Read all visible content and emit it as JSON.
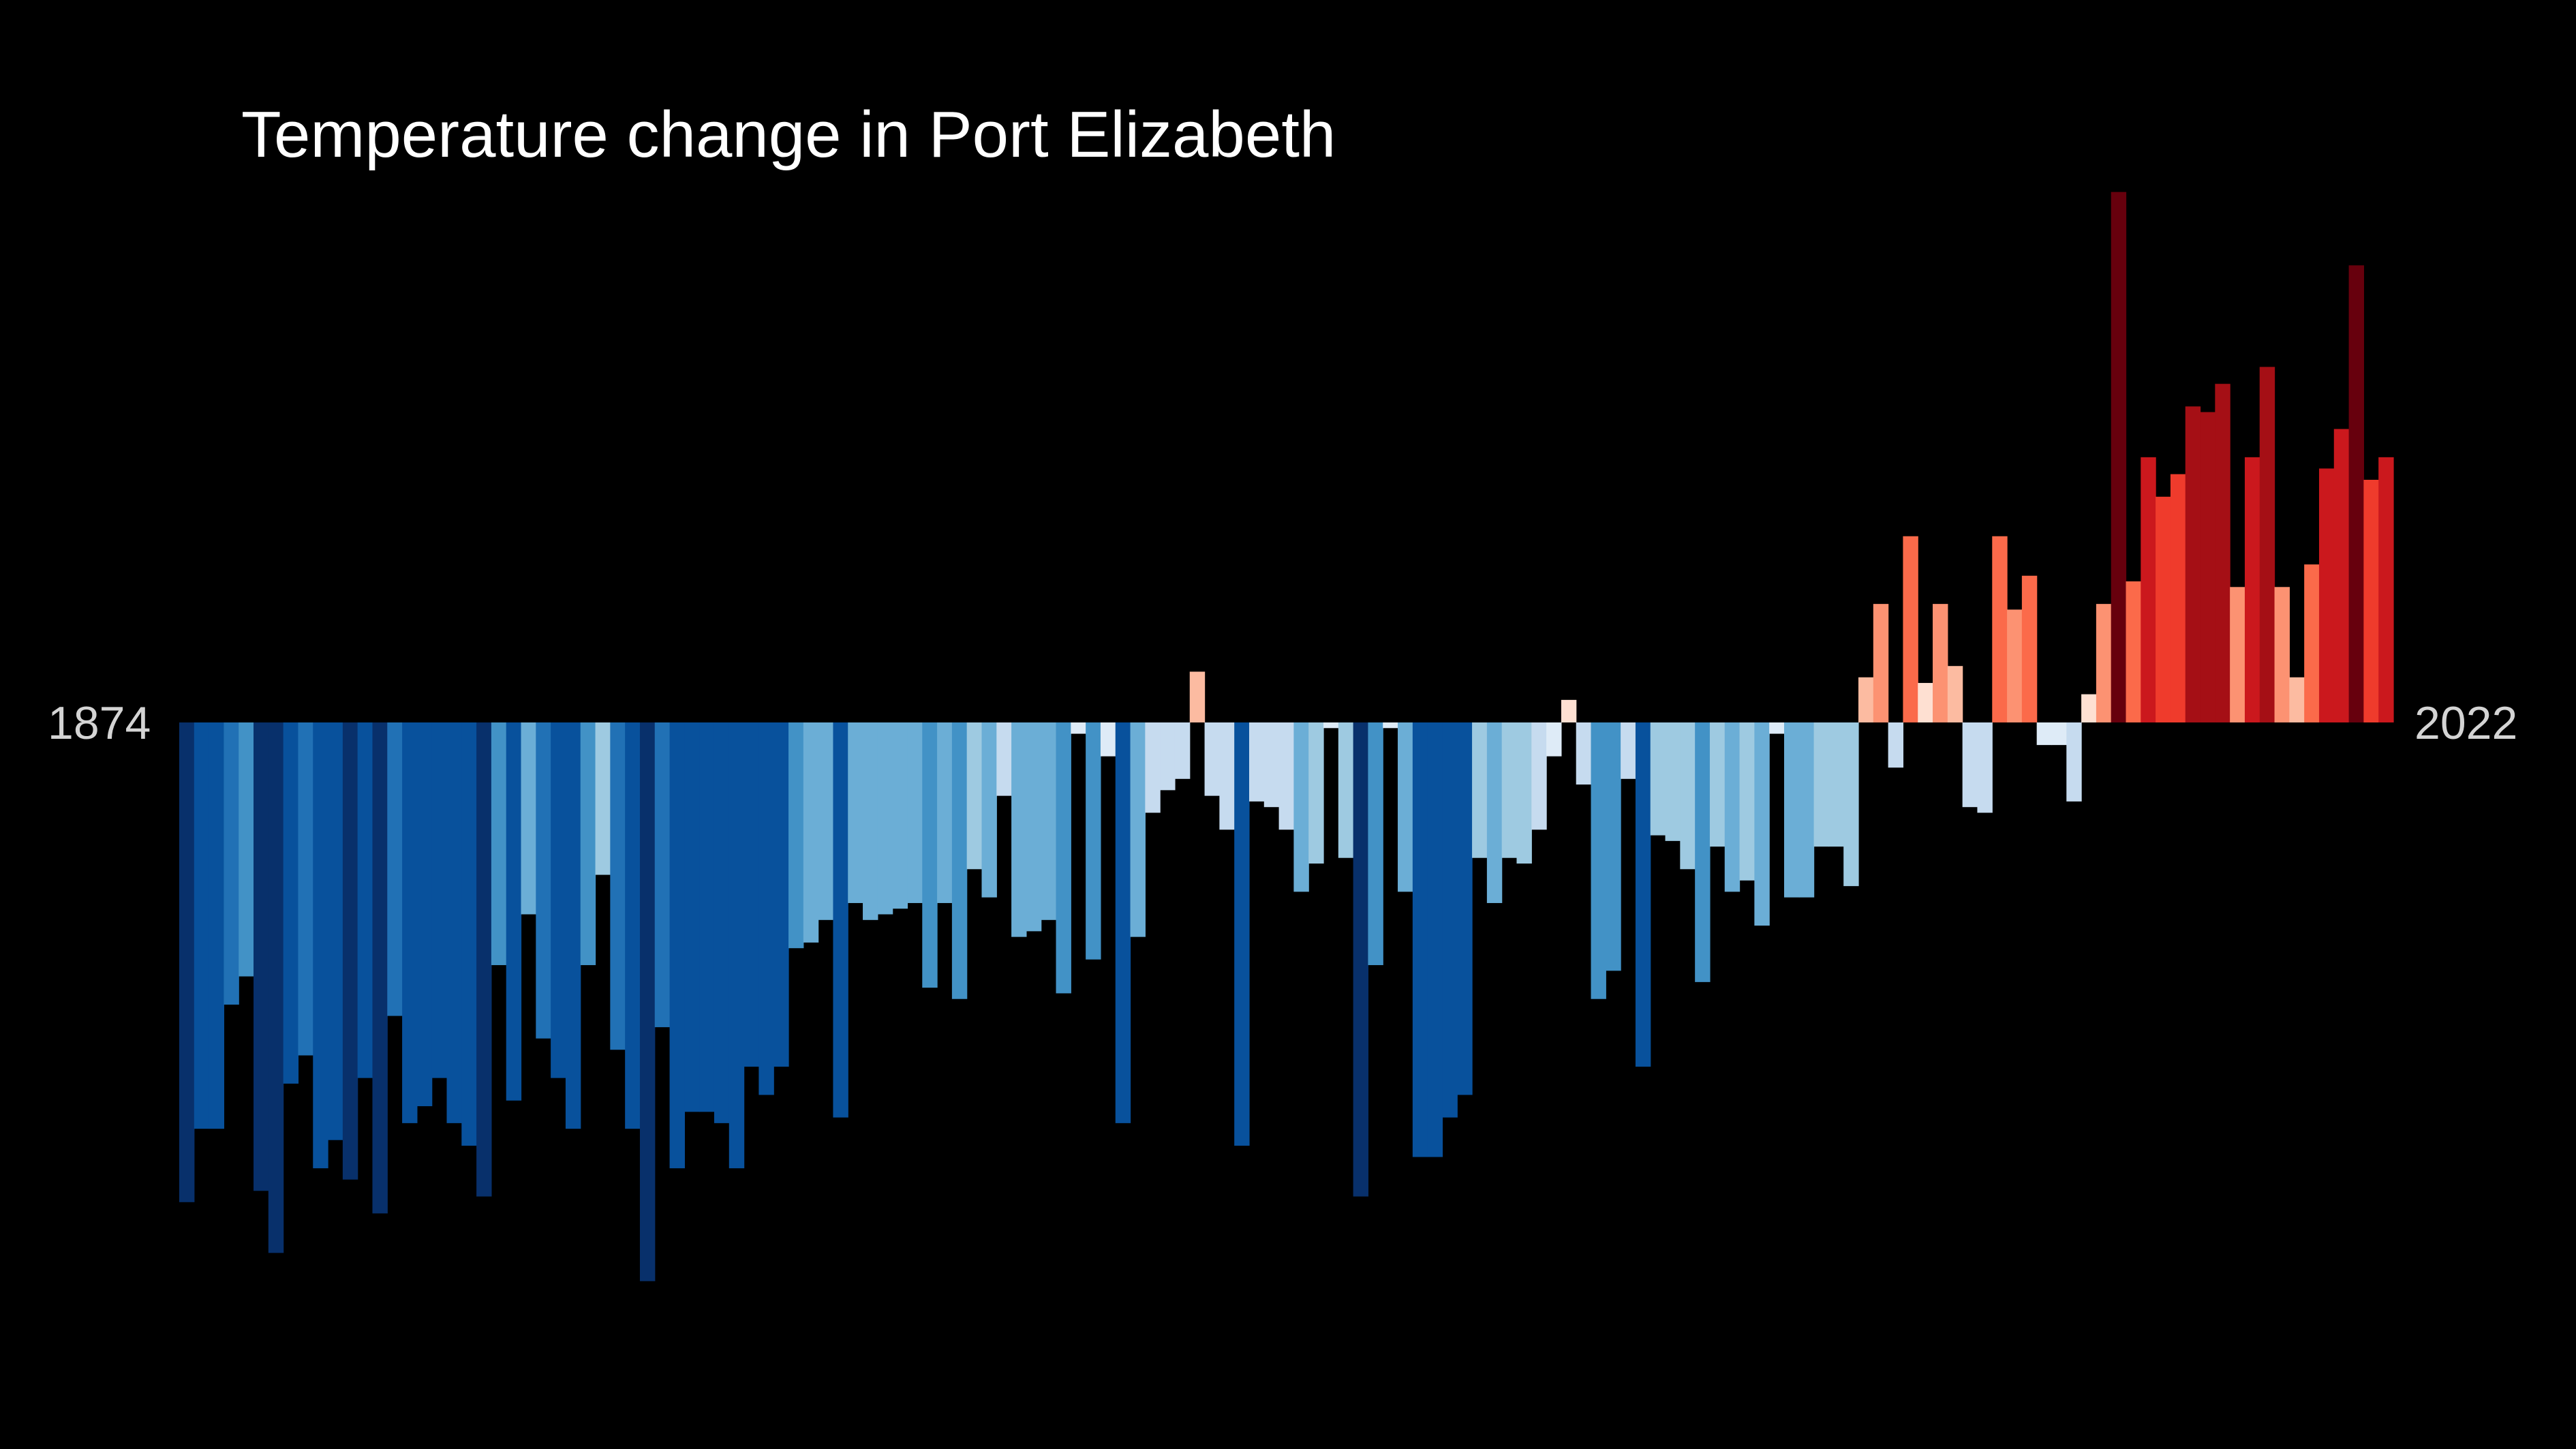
{
  "chart_data": {
    "type": "bar",
    "title": "Temperature change in Port Elizabeth",
    "x_start_label": "1874",
    "x_end_label": "2022",
    "x_start": 1874,
    "x_end": 2022,
    "baseline": 0,
    "ylim": [
      -0.98,
      1.08
    ],
    "grid": false,
    "legend": "none",
    "color_scale": {
      "cold": [
        "#08306b",
        "#08519c",
        "#2171b5",
        "#4292c6",
        "#6baed6",
        "#9ecae1",
        "#c6dbef",
        "#deebf7"
      ],
      "warm": [
        "#fee0d2",
        "#fcbba1",
        "#fc9272",
        "#fb6a4a",
        "#ef3b2c",
        "#cb181d",
        "#a50f15",
        "#67000d"
      ]
    },
    "values": [
      -0.85,
      -0.72,
      -0.72,
      -0.5,
      -0.45,
      -0.83,
      -0.94,
      -0.64,
      -0.59,
      -0.79,
      -0.74,
      -0.81,
      -0.63,
      -0.87,
      -0.52,
      -0.71,
      -0.68,
      -0.63,
      -0.71,
      -0.75,
      -0.84,
      -0.43,
      -0.67,
      -0.34,
      -0.56,
      -0.63,
      -0.72,
      -0.43,
      -0.27,
      -0.58,
      -0.72,
      -0.99,
      -0.54,
      -0.79,
      -0.69,
      -0.69,
      -0.71,
      -0.79,
      -0.61,
      -0.66,
      -0.61,
      -0.4,
      -0.39,
      -0.35,
      -0.7,
      -0.32,
      -0.35,
      -0.34,
      -0.33,
      -0.32,
      -0.47,
      -0.32,
      -0.49,
      -0.26,
      -0.31,
      -0.13,
      -0.38,
      -0.37,
      -0.35,
      -0.48,
      -0.02,
      -0.42,
      -0.06,
      -0.71,
      -0.38,
      -0.16,
      -0.12,
      -0.1,
      0.09,
      -0.13,
      -0.19,
      -0.75,
      -0.14,
      -0.15,
      -0.19,
      -0.3,
      -0.25,
      -0.01,
      -0.24,
      -0.84,
      -0.43,
      -0.01,
      -0.3,
      -0.77,
      -0.77,
      -0.7,
      -0.66,
      -0.24,
      -0.32,
      -0.24,
      -0.25,
      -0.19,
      -0.06,
      0.04,
      -0.11,
      -0.49,
      -0.44,
      -0.1,
      -0.61,
      -0.2,
      -0.21,
      -0.26,
      -0.46,
      -0.22,
      -0.3,
      -0.28,
      -0.36,
      -0.02,
      -0.31,
      -0.31,
      -0.22,
      -0.22,
      -0.29,
      0.08,
      0.21,
      -0.08,
      0.33,
      0.07,
      0.21,
      0.1,
      -0.15,
      -0.16,
      0.33,
      0.2,
      0.26,
      -0.04,
      -0.04,
      -0.14,
      0.05,
      0.21,
      0.94,
      0.25,
      0.47,
      0.4,
      0.44,
      0.56,
      0.55,
      0.6,
      0.24,
      0.47,
      0.63,
      0.24,
      0.08,
      0.28,
      0.45,
      0.52,
      0.81,
      0.43,
      0.47
    ]
  }
}
